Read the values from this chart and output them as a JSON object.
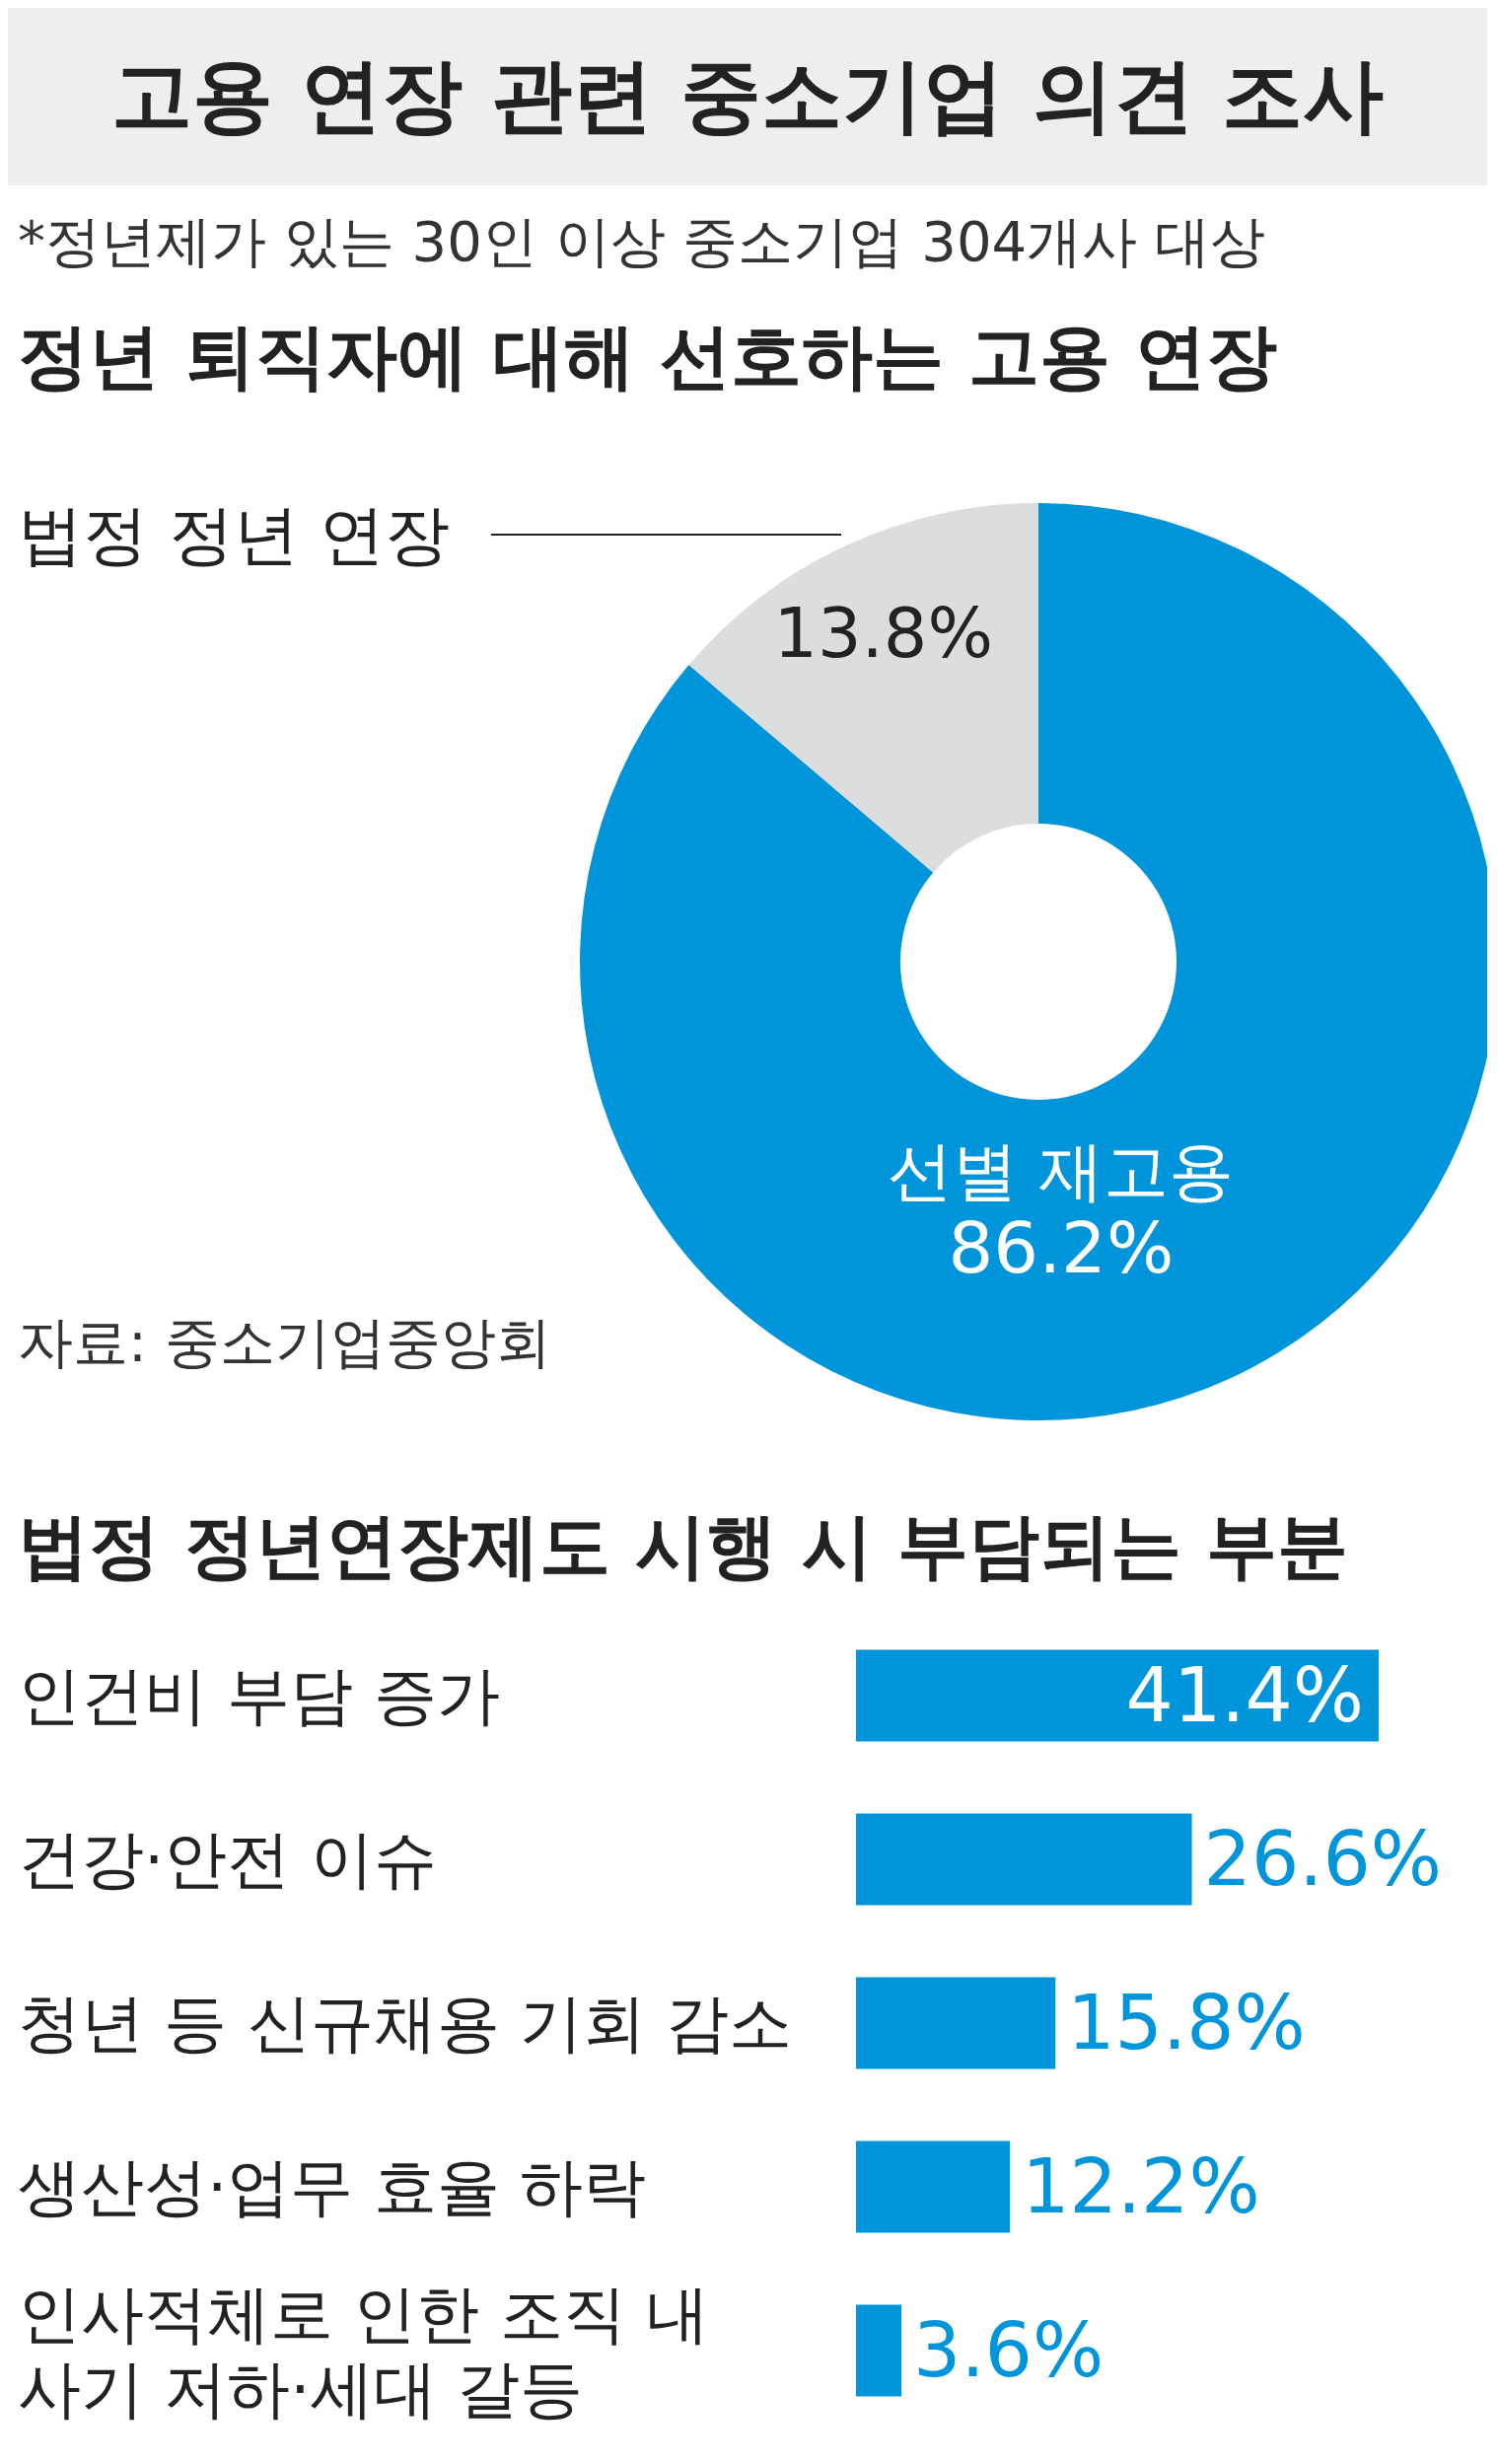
{
  "chart_data": [
    {
      "type": "other",
      "title": "고용 연장 관련 중소기업 의견 조사",
      "subtitle": "*정년제가 있는 30인 이상 중소기업 304개사 대상"
    },
    {
      "type": "donut",
      "title": "정년 퇴직자에 대해 선호하는 고용 연장",
      "categories": [
        "선별 재고용",
        "법정 정년 연장"
      ],
      "values": [
        86.2,
        13.8
      ],
      "colors": [
        "#0095da",
        "#dcdddf"
      ],
      "value_labels": [
        "86.2%",
        "13.8%"
      ],
      "annotations": [
        "자료: 중소기업중앙회"
      ]
    },
    {
      "type": "bar",
      "orientation": "horizontal",
      "title": "법정 정년연장제도 시행 시 부담되는 부분",
      "categories": [
        "인건비 부담 증가",
        "건강·안전 이슈",
        "청년 등 신규채용 기회 감소",
        "생산성·업무 효율 하락",
        "인사적체로 인한 조직 내 사기 저하·세대 갈등"
      ],
      "values": [
        41.4,
        26.6,
        15.8,
        12.2,
        3.6
      ],
      "color": "#0095da",
      "value_labels": [
        "41.4%",
        "26.6%",
        "15.8%",
        "12.2%",
        "3.6%"
      ]
    }
  ]
}
